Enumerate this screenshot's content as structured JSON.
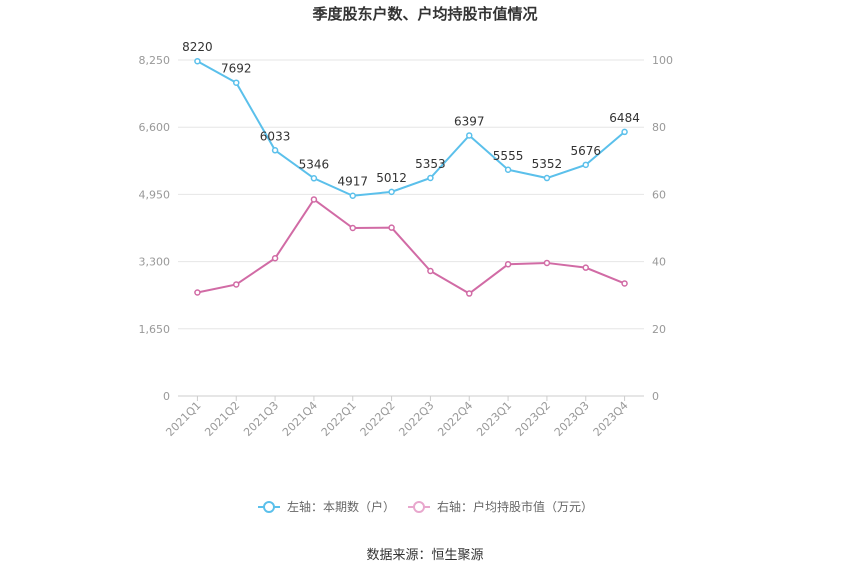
{
  "chart_data": {
    "type": "line",
    "title": "季度股东户数、户均持股市值情况",
    "categories": [
      "2021Q1",
      "2021Q2",
      "2021Q3",
      "2021Q4",
      "2022Q1",
      "2022Q2",
      "2022Q3",
      "2022Q4",
      "2023Q1",
      "2023Q2",
      "2023Q3",
      "2023Q4"
    ],
    "left_axis": {
      "ticks": [
        "0",
        "1,650",
        "3,300",
        "4,950",
        "6,600",
        "8,250"
      ],
      "min": 0,
      "max": 8250
    },
    "right_axis": {
      "ticks": [
        "0",
        "20",
        "40",
        "60",
        "80",
        "100"
      ],
      "min": 0,
      "max": 100
    },
    "series": [
      {
        "name": "左轴：本期数（户）",
        "axis": "left",
        "color": "#5bc0eb",
        "values": [
          8220,
          7692,
          6033,
          5346,
          4917,
          5012,
          5353,
          6397,
          5555,
          5352,
          5676,
          6484
        ],
        "labels": [
          "8220",
          "7692",
          "6033",
          "5346",
          "4917",
          "5012",
          "5353",
          "6397",
          "5555",
          "5352",
          "5676",
          "6484"
        ]
      },
      {
        "name": "右轴：户均持股市值（万元）",
        "axis": "right",
        "color": "#d16ba5",
        "values": [
          30.8,
          33.2,
          41.0,
          58.5,
          50.0,
          50.1,
          37.2,
          30.5,
          39.2,
          39.6,
          38.2,
          33.5
        ]
      }
    ],
    "legend_position": "bottom",
    "grid": true
  },
  "source": "数据来源：恒生聚源"
}
